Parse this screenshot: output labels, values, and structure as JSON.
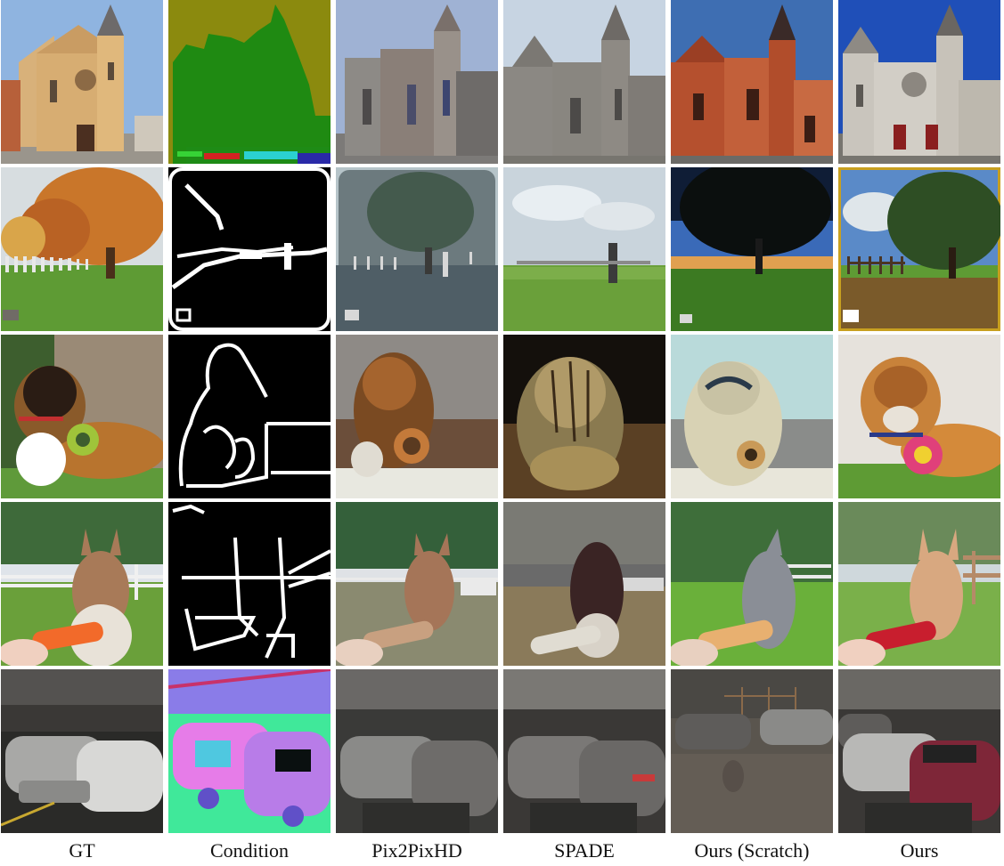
{
  "columns": [
    "GT",
    "Condition",
    "Pix2PixHD",
    "SPADE",
    "Ours (Scratch)",
    "Ours"
  ],
  "rows": [
    "church",
    "tree",
    "dog",
    "llama",
    "cars"
  ],
  "palette": {
    "sky_blue": "#8fb4e0",
    "deep_blue": "#1f4fb8",
    "stone": "#c9a06a",
    "red_brick": "#b5502e",
    "grey_stone": "#a9a59d",
    "seg_green": "#1f8a12",
    "seg_olive": "#8b8a0e",
    "grass": "#5e9b34",
    "autumn": "#c9762a",
    "dog_brown": "#b8742e",
    "llama_fur": "#a87a58",
    "car_silver": "#a8a8a6",
    "car_maroon": "#7e2638",
    "normal_green": "#40e89a",
    "normal_purple": "#8a7ce8",
    "normal_pink": "#e67ce8"
  }
}
